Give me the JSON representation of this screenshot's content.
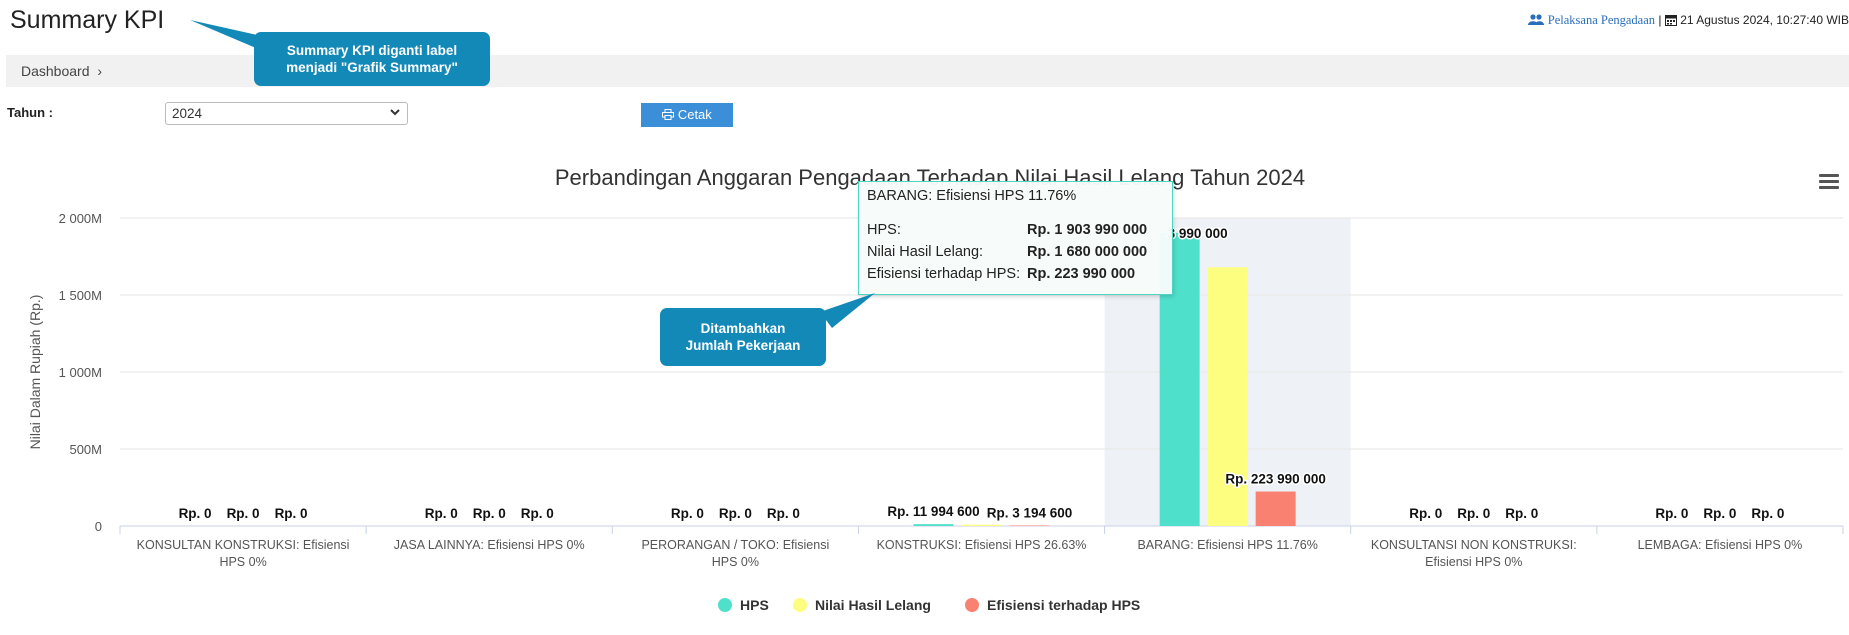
{
  "header": {
    "title": "Summary KPI",
    "user_role": "Pelaksana Pengadaan",
    "separator": "|",
    "datetime": "21 Agustus 2024, 10:27:40 WIB"
  },
  "breadcrumb": {
    "label": "Dashboard",
    "sep": "›"
  },
  "filters": {
    "year_label": "Tahun :",
    "year_value": "2024",
    "print_label": "Cetak"
  },
  "annotations": {
    "callout_1": [
      "Summary KPI diganti label",
      "menjadi \"Grafik Summary\""
    ],
    "callout_2": [
      "Ditambahkan",
      "Jumlah Pekerjaan"
    ]
  },
  "tooltip": {
    "header": "BARANG: Efisiensi HPS 11.76%",
    "rows": [
      {
        "label": "HPS:",
        "value": "Rp. 1 903 990 000"
      },
      {
        "label": "Nilai Hasil Lelang:",
        "value": "Rp. 1 680 000 000"
      },
      {
        "label": "Efisiensi terhadap HPS:",
        "value": "Rp. 223 990 000"
      }
    ]
  },
  "colors": {
    "hps": "#4fe0cc",
    "nilai": "#fdfd80",
    "efisiensi": "#f98171",
    "callout": "#1389b8",
    "button": "#3b8ed8",
    "highlight": "#eef2f7"
  },
  "chart_data": {
    "type": "bar",
    "title": "Perbandingan Anggaran Pengadaan Terhadap Nilai Hasil Lelang Tahun 2024",
    "ylabel": "Nilai Dalam Rupiah (Rp.)",
    "ylim": [
      0,
      2000000000
    ],
    "yticks": [
      {
        "value": 0,
        "label": "0"
      },
      {
        "value": 500000000,
        "label": "500M"
      },
      {
        "value": 1000000000,
        "label": "1 000M"
      },
      {
        "value": 1500000000,
        "label": "1 500M"
      },
      {
        "value": 2000000000,
        "label": "2 000M"
      }
    ],
    "categories": [
      [
        "KONSULTAN KONSTRUKSI: Efisiensi",
        "HPS 0%"
      ],
      [
        "JASA LAINNYA: Efisiensi HPS 0%"
      ],
      [
        "PERORANGAN / TOKO: Efisiensi",
        "HPS 0%"
      ],
      [
        "KONSTRUKSI: Efisiensi HPS 26.63%"
      ],
      [
        "BARANG: Efisiensi HPS 11.76%"
      ],
      [
        "KONSULTANSI NON KONSTRUKSI:",
        "Efisiensi HPS 0%"
      ],
      [
        "LEMBAGA: Efisiensi HPS 0%"
      ]
    ],
    "highlighted_category": 4,
    "series": [
      {
        "name": "HPS",
        "values": [
          0,
          0,
          0,
          11994600,
          1903990000,
          0,
          0
        ],
        "labels": [
          "Rp. 0",
          "Rp. 0",
          "Rp. 0",
          "Rp. 11 994 600",
          "",
          "Rp. 0",
          "Rp. 0"
        ]
      },
      {
        "name": "Nilai Hasil Lelang",
        "values": [
          0,
          0,
          0,
          8800000,
          1680000000,
          0,
          0
        ],
        "labels": [
          "Rp. 0",
          "Rp. 0",
          "Rp. 0",
          "",
          "",
          "Rp. 0",
          "Rp. 0"
        ]
      },
      {
        "name": "Efisiensi terhadap HPS",
        "values": [
          0,
          0,
          0,
          3194600,
          223990000,
          0,
          0
        ],
        "labels": [
          "Rp. 0",
          "Rp. 0",
          "Rp. 0",
          "Rp. 3 194 600",
          "Rp. 223 990 000",
          "Rp. 0",
          "Rp. 0"
        ]
      }
    ],
    "partial_label": "3 990 000",
    "legend_position": "bottom"
  }
}
